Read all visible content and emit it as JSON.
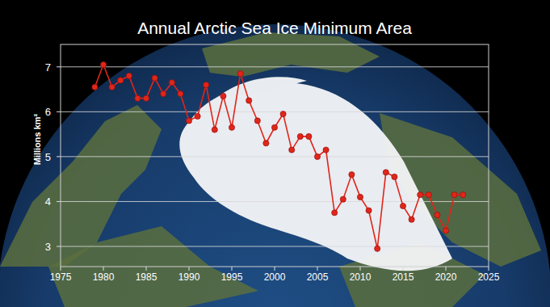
{
  "chart_data": {
    "type": "line",
    "title": "Annual Arctic Sea Ice Minimum Area",
    "y_label": "Millions km²",
    "x": [
      1979,
      1980,
      1981,
      1982,
      1983,
      1984,
      1985,
      1986,
      1987,
      1988,
      1989,
      1990,
      1991,
      1992,
      1993,
      1994,
      1995,
      1996,
      1997,
      1998,
      1999,
      2000,
      2001,
      2002,
      2003,
      2004,
      2005,
      2006,
      2007,
      2008,
      2009,
      2010,
      2011,
      2012,
      2013,
      2014,
      2015,
      2016,
      2017,
      2018,
      2019,
      2020,
      2021,
      2022
    ],
    "values": [
      6.55,
      7.05,
      6.55,
      6.7,
      6.8,
      6.3,
      6.3,
      6.75,
      6.4,
      6.65,
      6.4,
      5.8,
      5.9,
      6.6,
      5.6,
      6.35,
      5.65,
      6.85,
      6.25,
      5.8,
      5.3,
      5.65,
      5.95,
      5.15,
      5.45,
      5.45,
      5.0,
      5.15,
      3.75,
      4.05,
      4.6,
      4.1,
      3.8,
      2.95,
      4.65,
      4.55,
      3.9,
      3.6,
      4.15,
      4.15,
      3.7,
      3.35,
      4.15,
      4.15
    ],
    "color": "#e0261a",
    "marker": "circle",
    "xlim": [
      1975,
      2025
    ],
    "xticks": [
      1975,
      1980,
      1985,
      1990,
      1995,
      2000,
      2005,
      2010,
      2015,
      2020,
      2025
    ],
    "ylim": [
      2.55,
      7.5
    ],
    "yticks": [
      3,
      4,
      5,
      6,
      7
    ],
    "grid": true
  }
}
